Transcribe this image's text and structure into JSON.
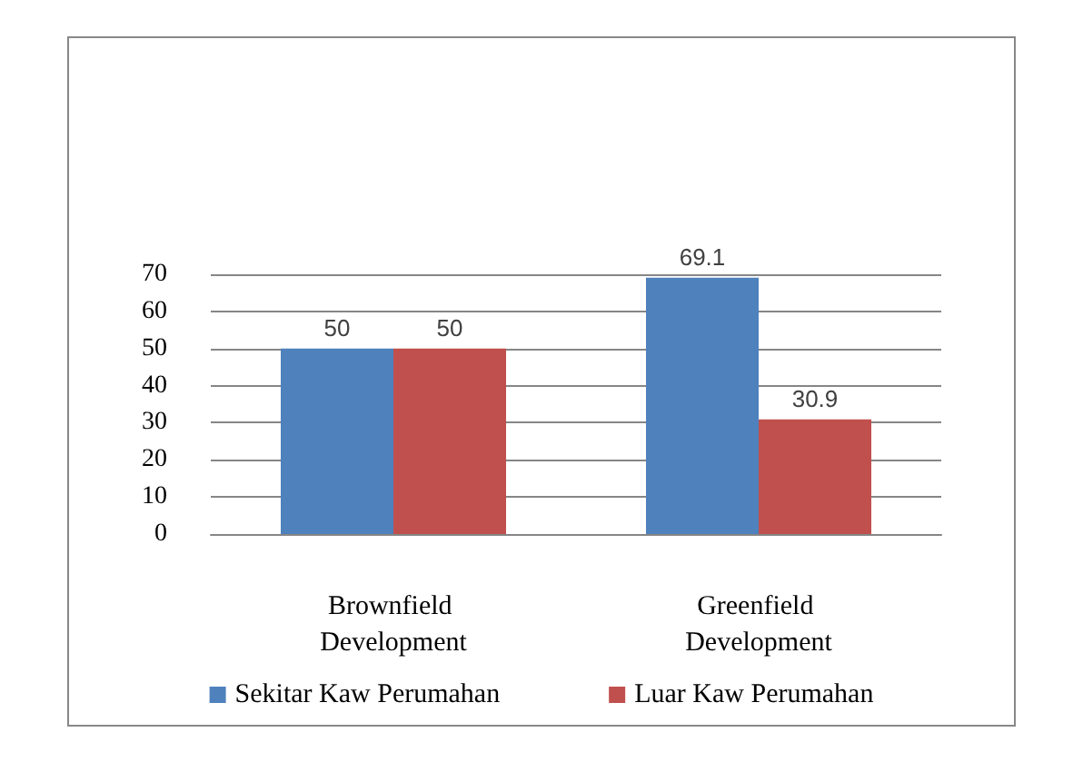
{
  "chart_data": {
    "type": "bar",
    "categories": [
      "Brownfield Development",
      "Greenfield Development"
    ],
    "series": [
      {
        "name": "Sekitar Kaw Perumahan",
        "color": "#4f81bd",
        "values": [
          50,
          69.1
        ]
      },
      {
        "name": "Luar Kaw Perumahan",
        "color": "#c0504d",
        "values": [
          50,
          30.9
        ]
      }
    ],
    "ylim": [
      0,
      70
    ],
    "yticks": [
      0,
      10,
      20,
      30,
      40,
      50,
      60,
      70
    ],
    "grid": true,
    "legend": "bottom",
    "data_labels": true
  }
}
